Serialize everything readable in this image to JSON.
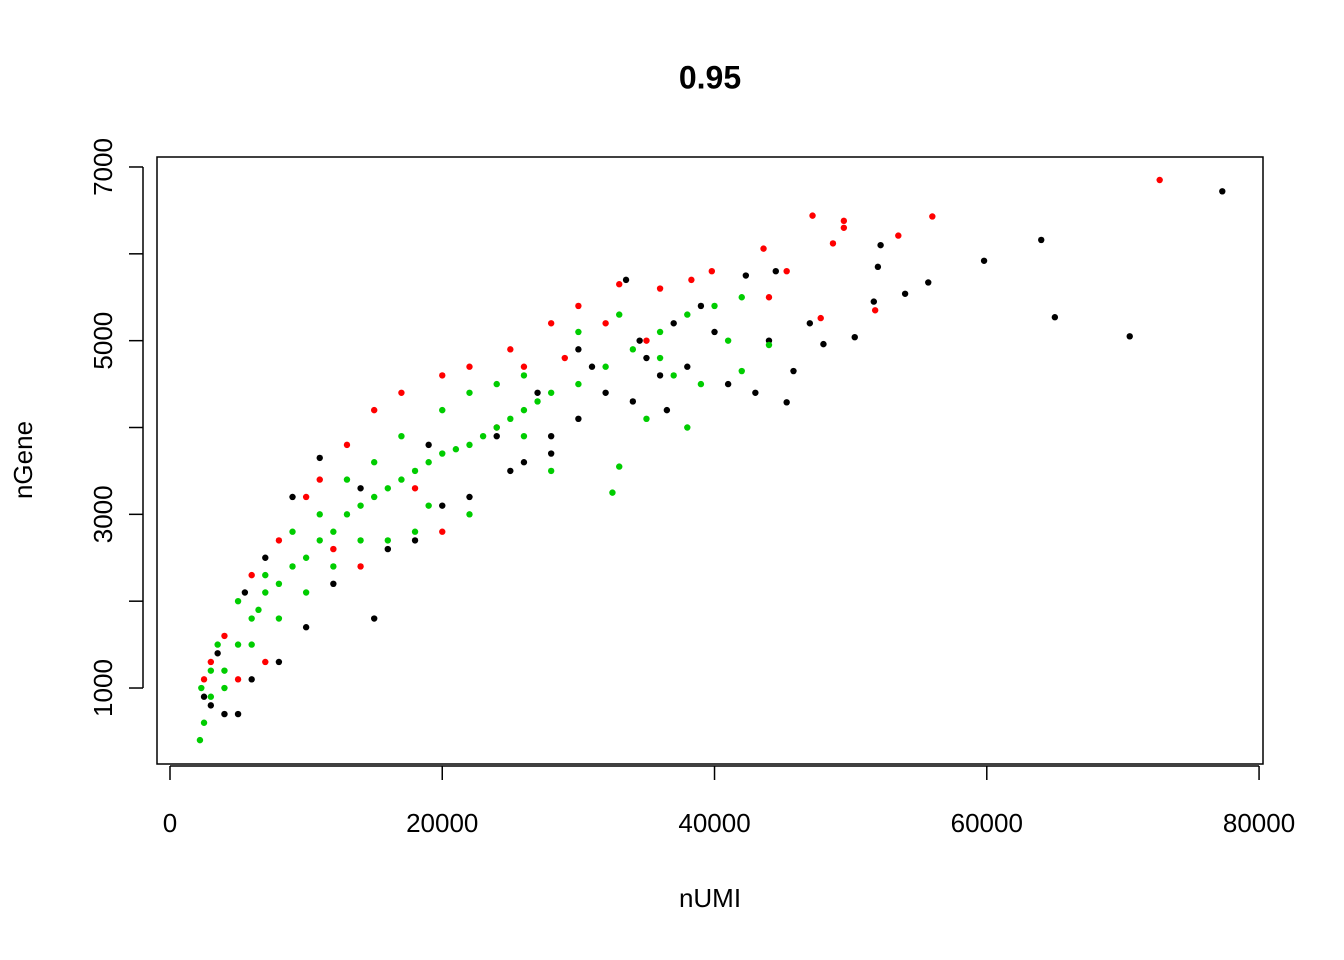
{
  "chart_data": {
    "type": "scatter",
    "title": "0.95",
    "x_label": "nUMI",
    "y_label": "nGene",
    "xlim": [
      -955,
      80290
    ],
    "ylim": [
      125,
      7115
    ],
    "xticks": [
      0,
      20000,
      40000,
      60000,
      80000
    ],
    "yticks": [
      1000,
      {
        "value": 2000,
        "label": null
      },
      3000,
      {
        "value": 4000,
        "label": null
      },
      5000,
      {
        "value": 6000,
        "label": null
      },
      7000
    ],
    "series": [
      {
        "color": "#000000",
        "x": [
          77300,
          70500,
          65000,
          64000,
          59800,
          55700,
          54000,
          52200,
          52000,
          51700,
          50300,
          48000,
          45800,
          45300,
          43000,
          44500,
          42300,
          40000,
          38000,
          36000,
          35000,
          34000,
          32000,
          30000,
          28000,
          26000,
          33500,
          30000,
          25000,
          22000,
          20000,
          18000,
          16000,
          15000,
          12000,
          10000,
          8000,
          6000,
          5000,
          4000,
          3000,
          11000,
          9000,
          7000,
          5500,
          3500,
          2500,
          14000,
          19000,
          24000,
          27000,
          31000,
          37000,
          39000,
          41000,
          44000,
          47000,
          28000,
          34500,
          36500
        ],
        "values": [
          6720,
          5050,
          5270,
          6160,
          5920,
          5670,
          5540,
          6100,
          5850,
          5450,
          5040,
          4960,
          4650,
          4290,
          4400,
          5800,
          5750,
          5100,
          4700,
          4600,
          4800,
          4300,
          4400,
          4100,
          3900,
          3600,
          5700,
          4900,
          3500,
          3200,
          3100,
          2700,
          2600,
          1800,
          2200,
          1700,
          1300,
          1100,
          700,
          700,
          800,
          3650,
          3200,
          2500,
          2100,
          1400,
          900,
          3300,
          3800,
          3900,
          4400,
          4700,
          5200,
          5400,
          4500,
          5000,
          5200,
          3700,
          5000,
          4200
        ]
      },
      {
        "color": "#ff0000",
        "x": [
          72700,
          56000,
          53500,
          49500,
          49500,
          47200,
          48700,
          43600,
          51800,
          47800,
          45300,
          44000,
          39800,
          38300,
          36000,
          33000,
          30000,
          28000,
          25000,
          22000,
          20000,
          17000,
          15000,
          13000,
          11000,
          10000,
          8000,
          6000,
          4000,
          3000,
          2500,
          5000,
          7000,
          12000,
          18000,
          24000,
          26000,
          32000,
          14000,
          20000,
          35000,
          29000
        ],
        "values": [
          6850,
          6430,
          6210,
          6380,
          6300,
          6440,
          6120,
          6060,
          5350,
          5260,
          5800,
          5500,
          5800,
          5700,
          5600,
          5650,
          5400,
          5200,
          4900,
          4700,
          4600,
          4400,
          4200,
          3800,
          3400,
          3200,
          2700,
          2300,
          1600,
          1300,
          1100,
          1100,
          1300,
          2600,
          3300,
          4000,
          4700,
          5200,
          2400,
          2800,
          5000,
          4800
        ]
      },
      {
        "color": "#00cd00",
        "x": [
          2200,
          2500,
          3000,
          4000,
          5000,
          6000,
          7000,
          8000,
          9000,
          10000,
          11000,
          12000,
          13000,
          14000,
          15000,
          16000,
          17000,
          18000,
          19000,
          20000,
          21000,
          22000,
          23000,
          24000,
          25000,
          26000,
          27000,
          28000,
          30000,
          32000,
          34000,
          36000,
          38000,
          40000,
          42000,
          39000,
          37000,
          35000,
          32500,
          33000,
          28000,
          26000,
          22000,
          18000,
          16000,
          12000,
          8000,
          6000,
          4000,
          2300,
          3500,
          5000,
          7000,
          9000,
          11000,
          13000,
          15000,
          17000,
          20000,
          22000,
          24000,
          26000,
          30000,
          33000,
          38000,
          41000,
          44000,
          42000,
          36000,
          14000,
          19000,
          10000,
          6500,
          3000
        ],
        "values": [
          400,
          600,
          900,
          1200,
          1500,
          1800,
          2100,
          2200,
          2400,
          2500,
          2700,
          2800,
          3000,
          3100,
          3200,
          3300,
          3400,
          3500,
          3600,
          3700,
          3750,
          3800,
          3900,
          4000,
          4100,
          4200,
          4300,
          4400,
          4500,
          4700,
          4900,
          5100,
          5300,
          5400,
          5500,
          4500,
          4600,
          4100,
          3250,
          3550,
          3500,
          3900,
          3000,
          2800,
          2700,
          2400,
          1800,
          1500,
          1000,
          1000,
          1500,
          2000,
          2300,
          2800,
          3000,
          3400,
          3600,
          3900,
          4200,
          4400,
          4500,
          4600,
          5100,
          5300,
          4000,
          5000,
          4950,
          4650,
          4800,
          2700,
          3100,
          2100,
          1900,
          1200
        ]
      }
    ]
  }
}
